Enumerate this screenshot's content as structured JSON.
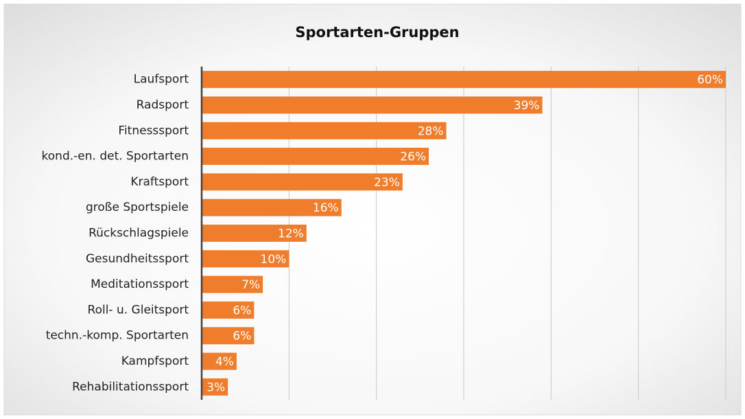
{
  "chart_data": {
    "type": "bar",
    "orientation": "horizontal",
    "title": "Sportarten-Gruppen",
    "categories": [
      "Laufsport",
      "Radsport",
      "Fitnesssport",
      "kond.-en. det. Sportarten",
      "Kraftsport",
      "große Sportspiele",
      "Rückschlagspiele",
      "Gesundheitssport",
      "Meditationssport",
      "Roll- u. Gleitsport",
      "techn.-komp. Sportarten",
      "Kampfsport",
      "Rehabilitationssport"
    ],
    "values": [
      60,
      39,
      28,
      26,
      23,
      16,
      12,
      10,
      7,
      6,
      6,
      4,
      3
    ],
    "value_labels": [
      "60%",
      "39%",
      "28%",
      "26%",
      "23%",
      "16%",
      "12%",
      "10%",
      "7%",
      "6%",
      "6%",
      "4%",
      "3%"
    ],
    "color": "#ef7d2c",
    "xlim": [
      0,
      60
    ],
    "xticks": [
      0,
      10,
      20,
      30,
      40,
      50,
      60
    ],
    "grid": true
  }
}
